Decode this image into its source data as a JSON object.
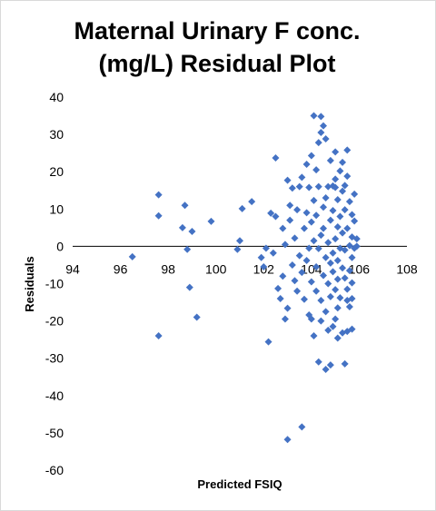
{
  "chart_data": {
    "type": "scatter",
    "title_line1": "Maternal Urinary F conc.",
    "title_line2": "(mg/L)  Residual Plot",
    "xlabel": "Predicted FSIQ",
    "ylabel": "Residuals",
    "xlim": [
      94,
      108
    ],
    "ylim": [
      -60,
      40
    ],
    "xticks": [
      "94",
      "96",
      "98",
      "100",
      "102",
      "104",
      "106",
      "108"
    ],
    "yticks": [
      "40",
      "30",
      "20",
      "10",
      "0",
      "-10",
      "-20",
      "-30",
      "-40",
      "-50",
      "-60"
    ],
    "marker_color": "#4472C4",
    "grid": false,
    "legend": false,
    "series": [
      {
        "points": [
          [
            96.5,
            -2.8
          ],
          [
            97.6,
            13.8
          ],
          [
            97.6,
            8.2
          ],
          [
            97.6,
            -24.0
          ],
          [
            98.6,
            5.0
          ],
          [
            98.7,
            11.0
          ],
          [
            98.8,
            -0.8
          ],
          [
            98.9,
            -11.0
          ],
          [
            99.0,
            4.0
          ],
          [
            99.2,
            -19.0
          ],
          [
            99.8,
            6.7
          ],
          [
            100.9,
            -0.8
          ],
          [
            101.0,
            1.5
          ],
          [
            101.1,
            10.1
          ],
          [
            101.5,
            12.0
          ],
          [
            101.9,
            -3.0
          ],
          [
            102.0,
            -5.5
          ],
          [
            102.1,
            -0.5
          ],
          [
            102.2,
            -25.6
          ],
          [
            102.3,
            8.9
          ],
          [
            102.4,
            -1.8
          ],
          [
            102.5,
            23.7
          ],
          [
            102.5,
            8.0
          ],
          [
            102.6,
            -11.3
          ],
          [
            102.7,
            -14.0
          ],
          [
            102.8,
            4.8
          ],
          [
            102.8,
            -8.0
          ],
          [
            102.9,
            0.5
          ],
          [
            102.9,
            -19.5
          ],
          [
            103.0,
            17.7
          ],
          [
            103.0,
            -16.6
          ],
          [
            103.0,
            -51.8
          ],
          [
            103.1,
            11.0
          ],
          [
            103.1,
            7.0
          ],
          [
            103.2,
            15.6
          ],
          [
            103.2,
            -5.0
          ],
          [
            103.3,
            -9.2
          ],
          [
            103.3,
            2.2
          ],
          [
            103.4,
            9.8
          ],
          [
            103.4,
            -12.0
          ],
          [
            103.5,
            16.0
          ],
          [
            103.5,
            -2.5
          ],
          [
            103.6,
            18.5
          ],
          [
            103.6,
            -7.0
          ],
          [
            103.6,
            -48.4
          ],
          [
            103.7,
            4.8
          ],
          [
            103.7,
            -14.2
          ],
          [
            103.8,
            22.0
          ],
          [
            103.8,
            -3.8
          ],
          [
            103.8,
            9.0
          ],
          [
            103.9,
            15.8
          ],
          [
            103.9,
            -18.4
          ],
          [
            103.9,
            -0.5
          ],
          [
            104.0,
            24.3
          ],
          [
            104.0,
            6.5
          ],
          [
            104.0,
            -9.5
          ],
          [
            104.0,
            -19.5
          ],
          [
            104.1,
            35.0
          ],
          [
            104.1,
            12.3
          ],
          [
            104.1,
            -24.0
          ],
          [
            104.1,
            1.5
          ],
          [
            104.2,
            20.5
          ],
          [
            104.2,
            -5.5
          ],
          [
            104.2,
            -12.0
          ],
          [
            104.2,
            8.3
          ],
          [
            104.3,
            27.8
          ],
          [
            104.3,
            16.0
          ],
          [
            104.3,
            -0.6
          ],
          [
            104.3,
            -31.0
          ],
          [
            104.4,
            34.8
          ],
          [
            104.4,
            30.5
          ],
          [
            104.4,
            3.0
          ],
          [
            104.4,
            -14.5
          ],
          [
            104.4,
            -20.0
          ],
          [
            104.5,
            32.3
          ],
          [
            104.5,
            10.5
          ],
          [
            104.5,
            -7.8
          ],
          [
            104.5,
            4.8
          ],
          [
            104.6,
            28.8
          ],
          [
            104.6,
            13.0
          ],
          [
            104.6,
            -3.0
          ],
          [
            104.6,
            -17.5
          ],
          [
            104.6,
            -33.0
          ],
          [
            104.7,
            16.0
          ],
          [
            104.7,
            1.0
          ],
          [
            104.7,
            -10.0
          ],
          [
            104.7,
            -22.5
          ],
          [
            104.8,
            23.0
          ],
          [
            104.8,
            7.0
          ],
          [
            104.8,
            -4.5
          ],
          [
            104.8,
            -13.5
          ],
          [
            104.8,
            -31.8
          ],
          [
            104.9,
            16.2
          ],
          [
            104.9,
            9.6
          ],
          [
            104.9,
            -1.8
          ],
          [
            104.9,
            -6.8
          ],
          [
            104.9,
            -21.5
          ],
          [
            105.0,
            25.3
          ],
          [
            105.0,
            18.0
          ],
          [
            105.0,
            15.8
          ],
          [
            105.0,
            2.0
          ],
          [
            105.0,
            -11.6
          ],
          [
            105.0,
            -19.5
          ],
          [
            105.1,
            12.5
          ],
          [
            105.1,
            5.2
          ],
          [
            105.1,
            -3.8
          ],
          [
            105.1,
            -8.8
          ],
          [
            105.1,
            -16.5
          ],
          [
            105.1,
            -24.6
          ],
          [
            105.2,
            20.2
          ],
          [
            105.2,
            8.0
          ],
          [
            105.2,
            -0.5
          ],
          [
            105.2,
            -13.8
          ],
          [
            105.3,
            22.5
          ],
          [
            105.3,
            14.8
          ],
          [
            105.3,
            3.6
          ],
          [
            105.3,
            -5.8
          ],
          [
            105.3,
            -23.2
          ],
          [
            105.4,
            16.3
          ],
          [
            105.4,
            9.8
          ],
          [
            105.4,
            -1.0
          ],
          [
            105.4,
            -8.5
          ],
          [
            105.4,
            -31.5
          ],
          [
            105.5,
            25.8
          ],
          [
            105.5,
            18.8
          ],
          [
            105.5,
            4.8
          ],
          [
            105.5,
            -11.5
          ],
          [
            105.5,
            -14.5
          ],
          [
            105.5,
            -22.8
          ],
          [
            105.6,
            12.0
          ],
          [
            105.6,
            0.2
          ],
          [
            105.6,
            -6.5
          ],
          [
            105.6,
            -16.2
          ],
          [
            105.7,
            8.5
          ],
          [
            105.7,
            2.5
          ],
          [
            105.7,
            -3.0
          ],
          [
            105.7,
            -9.8
          ],
          [
            105.7,
            -14.0
          ],
          [
            105.7,
            -22.2
          ],
          [
            105.8,
            14.0
          ],
          [
            105.8,
            6.8
          ],
          [
            105.8,
            -0.5
          ],
          [
            105.9,
            2.0
          ],
          [
            105.9,
            0.0
          ]
        ]
      }
    ]
  }
}
